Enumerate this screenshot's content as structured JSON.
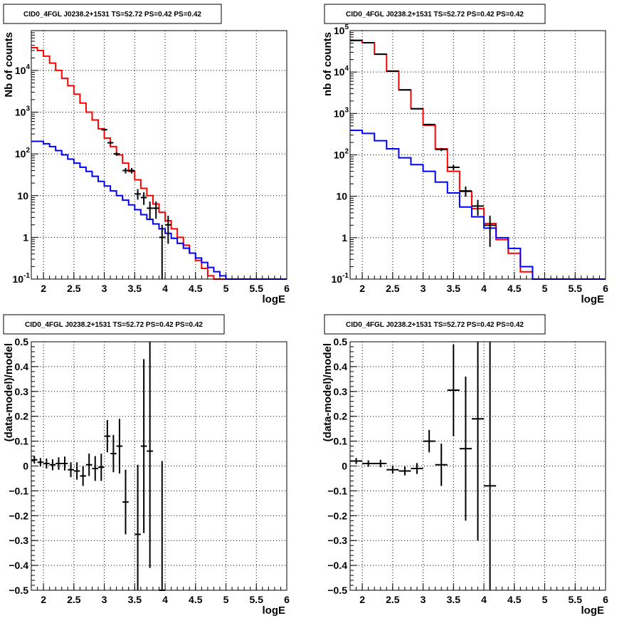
{
  "chart_data": [
    {
      "type": "line",
      "title": "CID0_4FGL J0238.2+1531 TS=52.72 PS=0.42 PS=0.42",
      "xlabel": "logE",
      "ylabel": "Nb of counts",
      "ylog": true,
      "xlim": [
        1.8,
        6.0
      ],
      "ylim": [
        0.1,
        90000
      ],
      "grid": true,
      "xticks": [
        "2",
        "2.5",
        "3",
        "3.5",
        "4",
        "4.5",
        "5",
        "5.5",
        "6"
      ],
      "yticks": [
        "10^-1",
        "1",
        "10",
        "10^2",
        "10^3",
        "10^4"
      ],
      "series": [
        {
          "color": "#ff0000",
          "style": "step",
          "bin_width": 0.1,
          "x": [
            1.85,
            1.95,
            2.05,
            2.15,
            2.25,
            2.35,
            2.45,
            2.55,
            2.65,
            2.75,
            2.85,
            2.95,
            3.05,
            3.15,
            3.25,
            3.35,
            3.45,
            3.55,
            3.65,
            3.75,
            3.85,
            3.95,
            4.05,
            4.15,
            4.25,
            4.35,
            4.45,
            4.55,
            4.65,
            4.75,
            4.85,
            4.95,
            5.05,
            5.15,
            5.25,
            5.35,
            5.45,
            5.55,
            5.65,
            5.75,
            5.85,
            5.95
          ],
          "values": [
            35000,
            30000,
            22000,
            15000,
            10000,
            6500,
            4300,
            2700,
            1650,
            1000,
            650,
            400,
            240,
            150,
            95,
            60,
            38,
            24,
            15,
            10,
            6.3,
            4.0,
            2.5,
            1.6,
            1.0,
            0.65,
            0.42,
            0.28,
            0.18,
            0.12,
            0.1,
            0.1,
            0.1,
            0.1,
            0.1,
            0.1,
            0.1,
            0.1,
            0.1,
            0.1,
            0.1,
            0.1
          ]
        },
        {
          "color": "#0000ff",
          "style": "step",
          "bin_width": 0.1,
          "x": [
            1.85,
            1.95,
            2.05,
            2.15,
            2.25,
            2.35,
            2.45,
            2.55,
            2.65,
            2.75,
            2.85,
            2.95,
            3.05,
            3.15,
            3.25,
            3.35,
            3.45,
            3.55,
            3.65,
            3.75,
            3.85,
            3.95,
            4.05,
            4.15,
            4.25,
            4.35,
            4.45,
            4.55,
            4.65,
            4.75,
            4.85,
            4.95,
            5.05,
            5.15,
            5.25,
            5.35,
            5.45,
            5.55,
            5.65,
            5.75,
            5.85,
            5.95
          ],
          "values": [
            200,
            200,
            175,
            150,
            120,
            95,
            75,
            60,
            48,
            38,
            29,
            22,
            17,
            13,
            10,
            7.8,
            6.0,
            4.6,
            3.5,
            2.7,
            2.1,
            1.6,
            1.25,
            0.95,
            0.72,
            0.55,
            0.42,
            0.32,
            0.25,
            0.19,
            0.15,
            0.12,
            0.1,
            0.1,
            0.1,
            0.1,
            0.1,
            0.1,
            0.1,
            0.1,
            0.1,
            0.1
          ]
        }
      ],
      "points": {
        "color": "#000000",
        "x": [
          3.0,
          3.1,
          3.2,
          3.35,
          3.45,
          3.55,
          3.65,
          3.75,
          3.85,
          3.95,
          4.05
        ],
        "values": [
          380,
          185,
          100,
          40,
          40,
          11,
          9,
          5,
          5,
          1,
          2
        ],
        "xerr": 0.05,
        "yerr_low": [
          20,
          14,
          10,
          6,
          6,
          3,
          3,
          2.2,
          2.2,
          1,
          1.3
        ],
        "yerr_high": [
          20,
          14,
          10,
          6,
          6,
          3.3,
          3,
          2.2,
          2.2,
          1,
          1.3
        ]
      }
    },
    {
      "type": "line",
      "title": "CID0_4FGL J0238.2+1531 TS=52.72 PS=0.42 PS=0.42",
      "xlabel": "logE",
      "ylabel": "nb of counts",
      "ylog": true,
      "xlim": [
        1.8,
        6.0
      ],
      "ylim": [
        0.1,
        100000
      ],
      "grid": true,
      "xticks": [
        "2",
        "2.5",
        "3",
        "3.5",
        "4",
        "4.5",
        "5",
        "5.5",
        "6"
      ],
      "yticks": [
        "10^-1",
        "1",
        "10",
        "10^2",
        "10^3",
        "10^4",
        "10^5"
      ],
      "series": [
        {
          "color": "#ff0000",
          "style": "step",
          "bin_width": 0.2,
          "x": [
            1.9,
            2.1,
            2.3,
            2.5,
            2.7,
            2.9,
            3.1,
            3.3,
            3.5,
            3.7,
            3.9,
            4.1,
            4.3,
            4.5,
            4.7,
            4.9,
            5.1,
            5.3,
            5.5,
            5.7,
            5.9
          ],
          "values": [
            58000,
            51000,
            27000,
            10500,
            3700,
            1300,
            520,
            140,
            40,
            13,
            5,
            2.2,
            0.9,
            0.42,
            0.15,
            0.1,
            0.1,
            0.1,
            0.1,
            0.1,
            0.1
          ]
        },
        {
          "color": "#0000ff",
          "style": "step",
          "bin_width": 0.2,
          "x": [
            1.9,
            2.1,
            2.3,
            2.5,
            2.7,
            2.9,
            3.1,
            3.3,
            3.5,
            3.7,
            3.9,
            4.1,
            4.3,
            4.5,
            4.7,
            4.9,
            5.1,
            5.3,
            5.5,
            5.7,
            5.9
          ],
          "values": [
            390,
            330,
            220,
            140,
            85,
            58,
            40,
            22,
            12,
            5.5,
            3.2,
            1.7,
            1.0,
            0.55,
            0.2,
            0.1,
            0.1,
            0.1,
            0.1,
            0.1,
            0.1
          ]
        }
      ],
      "points": {
        "color": "#000000",
        "x": [
          1.9,
          2.1,
          2.3,
          2.5,
          2.7,
          2.9,
          3.1,
          3.3,
          3.5,
          3.7,
          3.9,
          4.1
        ],
        "values": [
          58000,
          51000,
          27000,
          10500,
          3700,
          1300,
          540,
          135,
          50,
          13.5,
          5.8,
          2
        ],
        "xerr": 0.1,
        "yerr_low": [
          240,
          230,
          160,
          100,
          60,
          36,
          23,
          12,
          7,
          3.7,
          2.4,
          1.4
        ],
        "yerr_high": [
          240,
          230,
          160,
          100,
          60,
          36,
          23,
          12,
          7,
          3.7,
          2.4,
          1.4
        ]
      }
    },
    {
      "type": "scatter",
      "title": "CID0_4FGL J0238.2+1531 TS=52.72 PS=0.42 PS=0.42",
      "xlabel": "logE",
      "ylabel": "(data-model)/model",
      "xlim": [
        1.8,
        6.0
      ],
      "ylim": [
        -0.5,
        0.5
      ],
      "grid": true,
      "xticks": [
        "2",
        "2.5",
        "3",
        "3.5",
        "4",
        "4.5",
        "5",
        "5.5",
        "6"
      ],
      "yticks": [
        "-0.5",
        "-0.4",
        "-0.3",
        "-0.2",
        "-0.1",
        "0",
        "0.1",
        "0.2",
        "0.3",
        "0.4",
        "0.5"
      ],
      "points": {
        "color": "#000000",
        "x": [
          1.85,
          1.95,
          2.05,
          2.15,
          2.25,
          2.35,
          2.45,
          2.55,
          2.65,
          2.75,
          2.85,
          2.95,
          3.05,
          3.15,
          3.25,
          3.35,
          3.55,
          3.65,
          3.75,
          3.95
        ],
        "values": [
          0.025,
          0.015,
          0.01,
          0.005,
          0.01,
          0.01,
          -0.015,
          -0.02,
          -0.04,
          0.005,
          -0.01,
          -0.005,
          0.12,
          0.05,
          0.08,
          -0.145,
          -0.275,
          0.08,
          0.06,
          -0.5
        ],
        "xerr": 0.05,
        "yerr": [
          0.015,
          0.017,
          0.02,
          0.022,
          0.025,
          0.028,
          0.03,
          0.035,
          0.04,
          0.045,
          0.05,
          0.055,
          0.065,
          0.075,
          0.11,
          0.13,
          0.28,
          0.35,
          0.47,
          0.52
        ]
      }
    },
    {
      "type": "scatter",
      "title": "CID0_4FGL J0238.2+1531 TS=52.72 PS=0.42 PS=0.42",
      "xlabel": "logE",
      "ylabel": "(data-model)/model",
      "xlim": [
        1.8,
        6.0
      ],
      "ylim": [
        -0.5,
        0.5
      ],
      "grid": true,
      "xticks": [
        "2",
        "2.5",
        "3",
        "3.5",
        "4",
        "4.5",
        "5",
        "5.5",
        "6"
      ],
      "yticks": [
        "-0.5",
        "-0.4",
        "-0.3",
        "-0.2",
        "-0.1",
        "0",
        "0.1",
        "0.2",
        "0.3",
        "0.4",
        "0.5"
      ],
      "points": {
        "color": "#000000",
        "x": [
          1.9,
          2.1,
          2.3,
          2.5,
          2.7,
          2.9,
          3.1,
          3.3,
          3.5,
          3.7,
          3.9,
          4.1
        ],
        "values": [
          0.02,
          0.01,
          0.01,
          -0.015,
          -0.02,
          -0.01,
          0.1,
          0.005,
          0.305,
          0.07,
          0.19,
          -0.08
        ],
        "xerr": 0.1,
        "yerr": [
          0.012,
          0.013,
          0.015,
          0.016,
          0.018,
          0.022,
          0.045,
          0.085,
          0.185,
          0.29,
          0.49,
          0.75
        ]
      }
    }
  ]
}
